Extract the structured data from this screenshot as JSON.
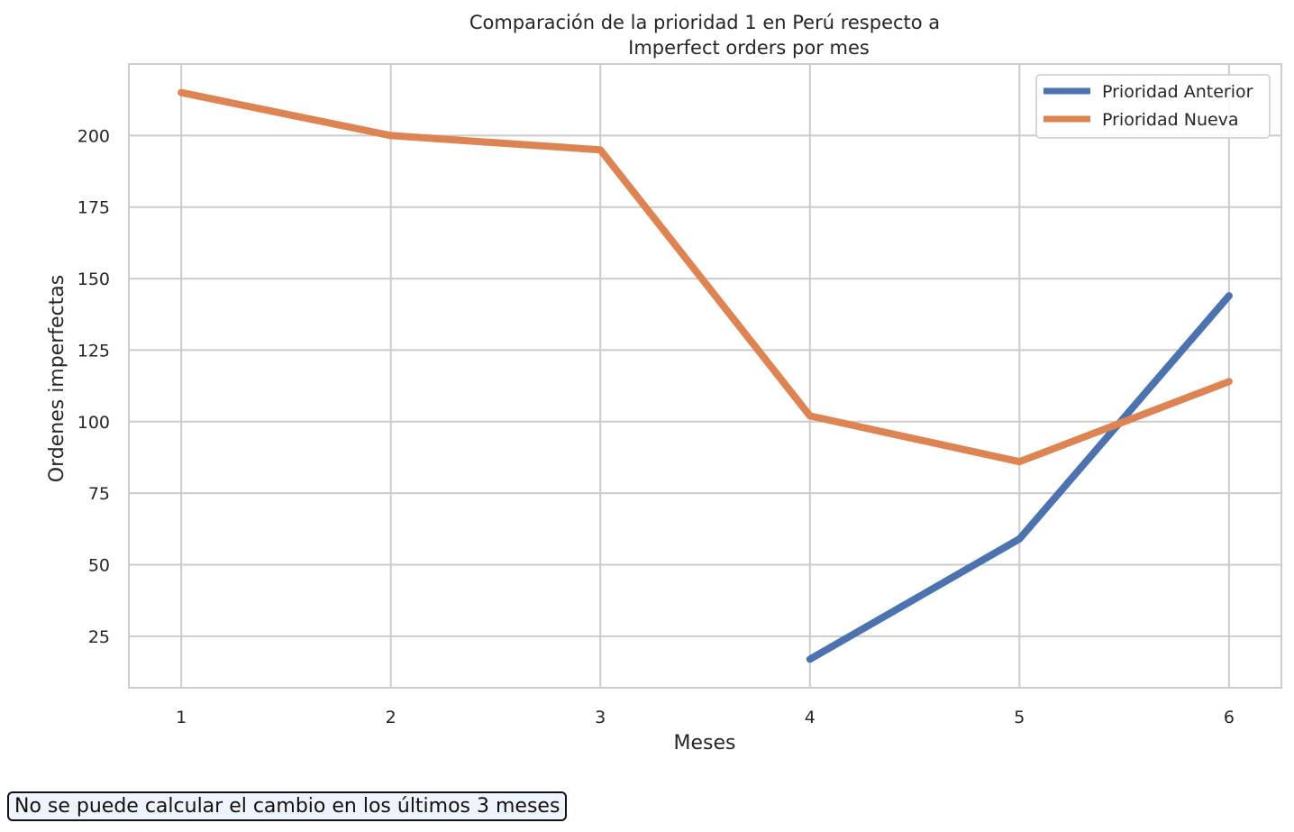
{
  "chart_data": {
    "type": "line",
    "title_line1": "Comparación de la prioridad 1 en Perú respecto a",
    "title_line2": "Imperfect orders por mes",
    "xlabel": "Meses",
    "ylabel": "Ordenes imperfectas",
    "x_ticks": [
      1,
      2,
      3,
      4,
      5,
      6
    ],
    "y_ticks": [
      25,
      50,
      75,
      100,
      125,
      150,
      175,
      200
    ],
    "xlim": [
      0.75,
      6.25
    ],
    "ylim": [
      7,
      225
    ],
    "grid": true,
    "legend_position": "top-right",
    "series": [
      {
        "name": "Prioridad Anterior",
        "color": "#4c72b0",
        "x": [
          4,
          5,
          6
        ],
        "values": [
          17,
          59,
          144
        ]
      },
      {
        "name": "Prioridad Nueva",
        "color": "#dd8452",
        "x": [
          1,
          2,
          3,
          4,
          5,
          6
        ],
        "values": [
          215,
          200,
          195,
          102,
          86,
          114
        ]
      }
    ]
  },
  "note": "No se puede calcular el cambio en los últimos 3 meses"
}
